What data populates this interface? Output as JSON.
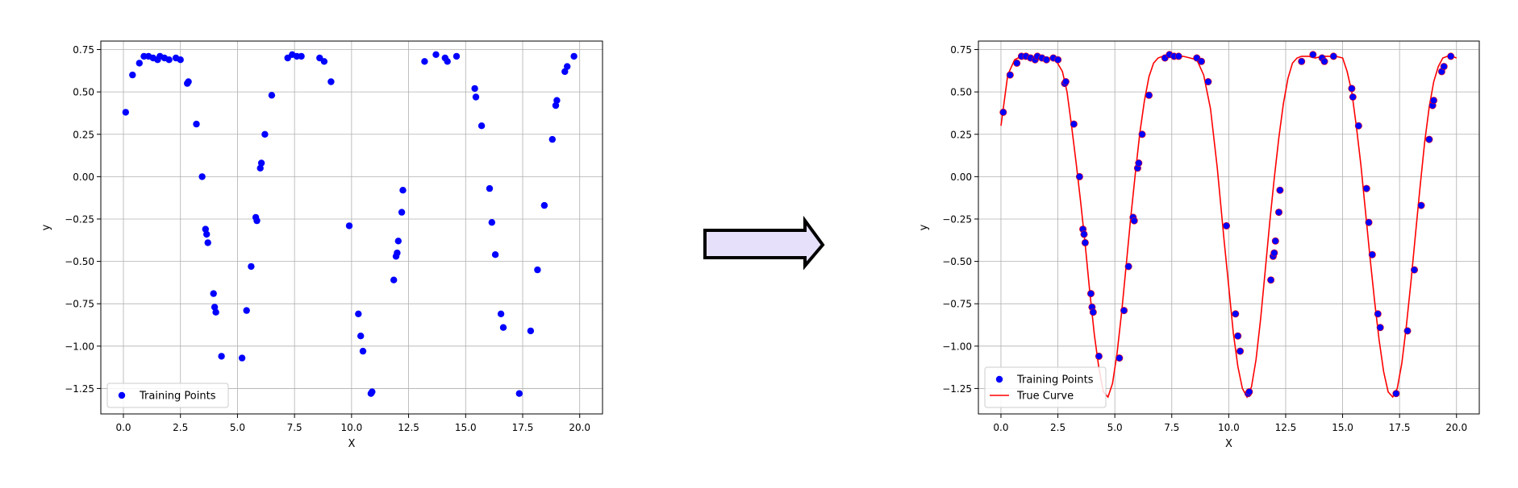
{
  "colors": {
    "points": "#0000ff",
    "curve": "#ff0000",
    "arrow_fill": "#e6e0fb",
    "arrow_stroke": "#000000",
    "grid": "#b0b0b0"
  },
  "arrow": {
    "icon": "right-arrow-icon"
  },
  "chart_data": [
    {
      "type": "scatter",
      "title": "",
      "xlabel": "X",
      "ylabel": "y",
      "xlim": [
        -0.99,
        21.0
      ],
      "ylim": [
        -1.4,
        0.8
      ],
      "xticks": [
        "0.0",
        "2.5",
        "5.0",
        "7.5",
        "10.0",
        "12.5",
        "15.0",
        "17.5",
        "20.0"
      ],
      "yticks": [
        "0.75",
        "0.50",
        "0.25",
        "0.00",
        "−0.25",
        "−0.50",
        "−0.75",
        "−1.00",
        "−1.25"
      ],
      "grid": true,
      "legend": "lower-left",
      "series": [
        {
          "name": "Training Points",
          "kind": "scatter",
          "x": [
            0.1,
            0.4,
            0.7,
            0.9,
            1.1,
            1.3,
            1.5,
            1.6,
            1.8,
            2.0,
            2.3,
            2.5,
            2.8,
            2.85,
            3.2,
            3.45,
            3.6,
            3.65,
            3.7,
            3.95,
            4.0,
            4.05,
            4.3,
            5.2,
            5.4,
            5.6,
            5.8,
            5.85,
            6.0,
            6.05,
            6.2,
            6.5,
            7.2,
            7.4,
            7.6,
            7.8,
            8.6,
            8.8,
            9.1,
            9.9,
            10.3,
            10.4,
            10.5,
            10.85,
            10.9,
            11.85,
            11.95,
            12.0,
            12.05,
            12.2,
            12.25,
            13.2,
            13.7,
            14.1,
            14.2,
            14.6,
            15.4,
            15.45,
            15.7,
            16.05,
            16.15,
            16.3,
            16.55,
            16.65,
            17.35,
            17.85,
            18.15,
            18.45,
            18.8,
            18.95,
            19.0,
            19.35,
            19.45,
            19.75
          ],
          "y": [
            0.38,
            0.6,
            0.67,
            0.71,
            0.71,
            0.7,
            0.69,
            0.71,
            0.7,
            0.69,
            0.7,
            0.69,
            0.55,
            0.56,
            0.31,
            0.0,
            -0.31,
            -0.34,
            -0.39,
            -0.69,
            -0.77,
            -0.8,
            -1.06,
            -1.07,
            -0.79,
            -0.53,
            -0.24,
            -0.26,
            0.05,
            0.08,
            0.25,
            0.48,
            0.7,
            0.72,
            0.71,
            0.71,
            0.7,
            0.68,
            0.56,
            -0.29,
            -0.81,
            -0.94,
            -1.03,
            -1.28,
            -1.27,
            -0.61,
            -0.47,
            -0.45,
            -0.38,
            -0.21,
            -0.08,
            0.68,
            0.72,
            0.7,
            0.68,
            0.71,
            0.52,
            0.47,
            0.3,
            -0.07,
            -0.27,
            -0.46,
            -0.81,
            -0.89,
            -1.28,
            -0.91,
            -0.55,
            -0.17,
            0.22,
            0.42,
            0.45,
            0.62,
            0.65,
            0.71
          ]
        }
      ]
    },
    {
      "type": "scatter",
      "title": "",
      "xlabel": "X",
      "ylabel": "y",
      "xlim": [
        -0.99,
        21.0
      ],
      "ylim": [
        -1.4,
        0.8
      ],
      "xticks": [
        "0.0",
        "2.5",
        "5.0",
        "7.5",
        "10.0",
        "12.5",
        "15.0",
        "17.5",
        "20.0"
      ],
      "yticks": [
        "0.75",
        "0.50",
        "0.25",
        "0.00",
        "−0.25",
        "−0.50",
        "−0.75",
        "−1.00",
        "−1.25"
      ],
      "grid": true,
      "legend": "lower-left",
      "series": [
        {
          "name": "Training Points",
          "kind": "scatter",
          "same_as_left": true
        },
        {
          "name": "True Curve",
          "kind": "line",
          "x": [
            0.0,
            0.3,
            0.6,
            0.9,
            1.2,
            1.5,
            1.8,
            2.1,
            2.4,
            2.7,
            2.9,
            3.1,
            3.3,
            3.5,
            3.7,
            3.9,
            4.1,
            4.3,
            4.5,
            4.7,
            4.9,
            5.1,
            5.3,
            5.5,
            5.7,
            5.9,
            6.1,
            6.3,
            6.5,
            6.7,
            6.9,
            7.1,
            7.4,
            7.7,
            8.0,
            8.3,
            8.6,
            8.9,
            9.2,
            9.5,
            9.8,
            10.0,
            10.2,
            10.4,
            10.6,
            10.8,
            11.0,
            11.2,
            11.4,
            11.6,
            11.8,
            12.0,
            12.2,
            12.4,
            12.6,
            12.8,
            13.0,
            13.2,
            13.5,
            13.8,
            14.1,
            14.4,
            14.7,
            15.0,
            15.2,
            15.4,
            15.6,
            15.8,
            16.0,
            16.2,
            16.4,
            16.6,
            16.8,
            17.0,
            17.2,
            17.4,
            17.6,
            17.8,
            18.0,
            18.2,
            18.4,
            18.6,
            18.8,
            19.0,
            19.2,
            19.4,
            19.6,
            19.8,
            20.0
          ],
          "y": [
            0.3,
            0.6,
            0.69,
            0.71,
            0.7,
            0.71,
            0.7,
            0.7,
            0.69,
            0.62,
            0.5,
            0.3,
            0.08,
            -0.15,
            -0.4,
            -0.68,
            -0.93,
            -1.13,
            -1.27,
            -1.3,
            -1.22,
            -1.04,
            -0.8,
            -0.52,
            -0.24,
            0.02,
            0.26,
            0.45,
            0.59,
            0.67,
            0.7,
            0.71,
            0.71,
            0.7,
            0.71,
            0.7,
            0.69,
            0.6,
            0.4,
            0.05,
            -0.38,
            -0.65,
            -0.92,
            -1.12,
            -1.25,
            -1.3,
            -1.24,
            -1.08,
            -0.84,
            -0.56,
            -0.27,
            -0.01,
            0.23,
            0.43,
            0.58,
            0.67,
            0.7,
            0.71,
            0.71,
            0.7,
            0.71,
            0.71,
            0.71,
            0.7,
            0.62,
            0.5,
            0.3,
            0.07,
            -0.2,
            -0.47,
            -0.73,
            -0.96,
            -1.15,
            -1.27,
            -1.3,
            -1.25,
            -1.1,
            -0.88,
            -0.62,
            -0.34,
            -0.06,
            0.2,
            0.41,
            0.56,
            0.65,
            0.7,
            0.71,
            0.71,
            0.7
          ]
        }
      ]
    }
  ]
}
